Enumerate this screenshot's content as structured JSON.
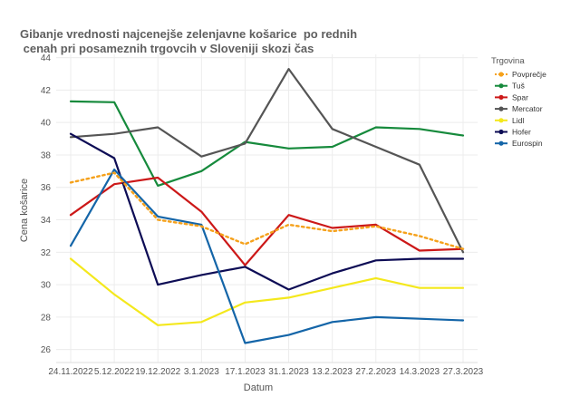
{
  "chart_data": {
    "type": "line",
    "title_lines": [
      "Gibanje vrednosti najcenejše zelenjavne košarice  po rednih",
      " cenah pri posameznih trgovcih v Sloveniji skozi čas"
    ],
    "xlabel": "Datum",
    "ylabel": "Cena košarice",
    "ylim": [
      25.2,
      44.2
    ],
    "yticks": [
      26,
      28,
      30,
      32,
      34,
      36,
      38,
      40,
      42,
      44
    ],
    "categories": [
      "24.11.2022",
      "5.12.2022",
      "19.12.2022",
      "3.1.2023",
      "17.1.2023",
      "31.1.2023",
      "13.2.2023",
      "27.2.2023",
      "14.3.2023",
      "27.3.2023"
    ],
    "grid": true,
    "legend": {
      "title": "Trgovina",
      "placement": "right"
    },
    "series": [
      {
        "name": "Povprečje",
        "color": "#f5a11b",
        "dashed": true,
        "values": [
          36.3,
          36.9,
          34.0,
          33.6,
          32.5,
          33.7,
          33.3,
          33.6,
          33.0,
          32.2
        ]
      },
      {
        "name": "Tuš",
        "color": "#168a3c",
        "dashed": false,
        "values": [
          41.3,
          41.25,
          36.1,
          37.0,
          38.8,
          38.4,
          38.5,
          39.7,
          39.6,
          39.2
        ]
      },
      {
        "name": "Spar",
        "color": "#cc1818",
        "dashed": false,
        "values": [
          34.3,
          36.2,
          36.6,
          34.5,
          31.2,
          34.3,
          33.5,
          33.7,
          32.1,
          32.2
        ]
      },
      {
        "name": "Mercator",
        "color": "#555555",
        "dashed": false,
        "values": [
          39.1,
          39.3,
          39.7,
          37.9,
          38.7,
          43.3,
          39.6,
          38.5,
          37.4,
          32.0
        ]
      },
      {
        "name": "Lidl",
        "color": "#f4e81c",
        "dashed": false,
        "values": [
          31.6,
          29.4,
          27.5,
          27.7,
          28.9,
          29.2,
          29.8,
          30.4,
          29.8,
          29.8
        ]
      },
      {
        "name": "Hofer",
        "color": "#0d0c55",
        "dashed": false,
        "values": [
          39.3,
          37.8,
          30.0,
          30.6,
          31.1,
          29.7,
          30.7,
          31.5,
          31.6,
          31.6
        ]
      },
      {
        "name": "Eurospin",
        "color": "#1465a8",
        "dashed": false,
        "values": [
          32.4,
          37.1,
          34.2,
          33.7,
          26.4,
          26.9,
          27.7,
          28.0,
          27.9,
          27.8
        ]
      }
    ]
  }
}
